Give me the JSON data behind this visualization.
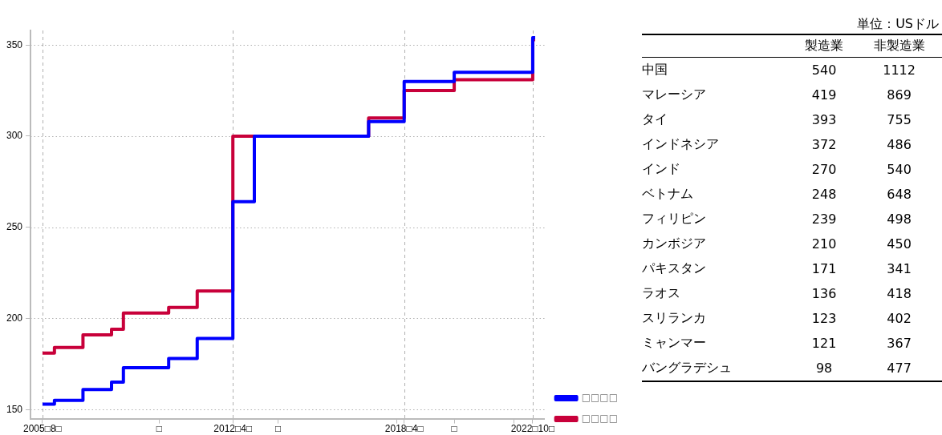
{
  "chart_data": [
    {
      "type": "step",
      "x": [
        "2005-08",
        "2006-01",
        "2007-01",
        "2008-01",
        "2008-06",
        "2010-01",
        "2011-01",
        "2012-04",
        "2013-01",
        "2017-01",
        "2018-04",
        "2020-01",
        "2022-10",
        "2022-11"
      ],
      "series": [
        {
          "name": "□□□□",
          "color": "#c8003a",
          "values": [
            181,
            184,
            191,
            194,
            203,
            206,
            215,
            300,
            300,
            310,
            325,
            331,
            353,
            353
          ]
        },
        {
          "name": "□□□□",
          "color": "#0000ff",
          "values": [
            153,
            155,
            161,
            165,
            173,
            178,
            189,
            264,
            300,
            308,
            330,
            335,
            354,
            354
          ]
        }
      ],
      "xlim": [
        "2005-03",
        "2023-03"
      ],
      "xticks": [
        {
          "value": "2005-08",
          "label": "2005□8□"
        },
        {
          "value": "2009-09",
          "label": "□"
        },
        {
          "value": "2012-04",
          "label": "2012□4□"
        },
        {
          "value": "2013-11",
          "label": "□"
        },
        {
          "value": "2018-01",
          "label": null
        },
        {
          "value": "2018-04",
          "label": "2018□4□"
        },
        {
          "value": "2020-01",
          "label": "□"
        },
        {
          "value": "2022-02",
          "label": null
        },
        {
          "value": "2022-10",
          "label": "2022□10□"
        }
      ],
      "ylim": [
        145,
        358
      ],
      "yticks": [
        150,
        200,
        250,
        300,
        350
      ],
      "grid": true,
      "legend": "bottom right",
      "line_style": "solid",
      "marker": "none"
    },
    {
      "type": "other",
      "subtitle": "単位：USドル",
      "categories": [
        "中国",
        "マレーシア",
        "タイ",
        "インドネシア",
        "インド",
        "ベトナム",
        "フィリピン",
        "カンボジア",
        "パキスタン",
        "ラオス",
        "スリランカ",
        "ミャンマー",
        "バングラデシュ"
      ],
      "series": [
        {
          "name": "製造業",
          "values": [
            540,
            419,
            393,
            372,
            270,
            248,
            239,
            210,
            171,
            136,
            123,
            121,
            98
          ]
        },
        {
          "name": "非製造業",
          "values": [
            1112,
            869,
            755,
            486,
            540,
            648,
            498,
            450,
            341,
            418,
            402,
            367,
            477
          ]
        }
      ],
      "data_labels": true
    }
  ]
}
